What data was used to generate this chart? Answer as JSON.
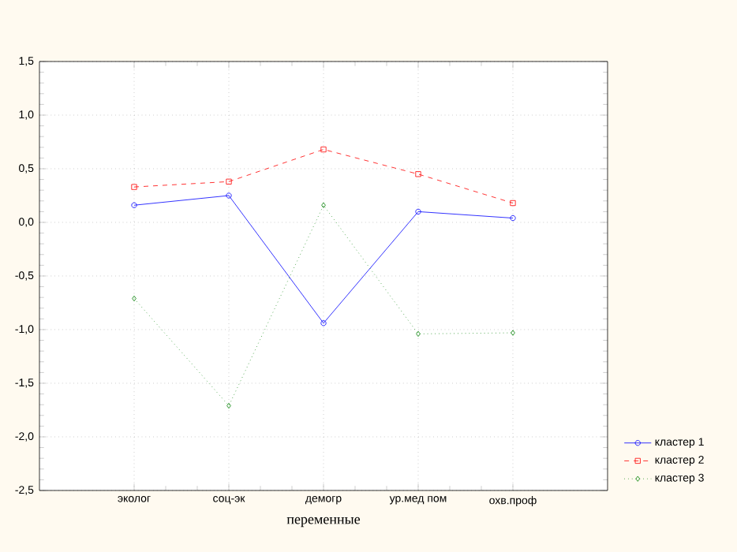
{
  "chart_data": {
    "type": "line",
    "xlabel": "переменные",
    "categories": [
      "эколог",
      "соц-эк",
      "демогр",
      "ур.мед пом",
      "охв.проф"
    ],
    "series": [
      {
        "name": "кластер 1",
        "color": "#0000ff",
        "marker": "circle",
        "line_style": "solid",
        "values": [
          0.16,
          0.25,
          -0.94,
          0.1,
          0.04
        ]
      },
      {
        "name": "кластер 2",
        "color": "#ff0000",
        "marker": "square",
        "line_style": "dashed",
        "values": [
          0.33,
          0.38,
          0.68,
          0.45,
          0.18
        ]
      },
      {
        "name": "кластер 3",
        "color": "#008000",
        "marker": "diamond",
        "line_style": "dotted",
        "values": [
          -0.71,
          -1.71,
          0.16,
          -1.04,
          -1.03
        ]
      }
    ],
    "ylim": [
      -2.5,
      1.5
    ],
    "yticks": [
      {
        "value": -2.5,
        "label": "-2,5"
      },
      {
        "value": -2.0,
        "label": "-2,0"
      },
      {
        "value": -1.5,
        "label": "-1,5"
      },
      {
        "value": -1.0,
        "label": "-1,0"
      },
      {
        "value": -0.5,
        "label": "-0,5"
      },
      {
        "value": 0.0,
        "label": "0,0"
      },
      {
        "value": 0.5,
        "label": "0,5"
      },
      {
        "value": 1.0,
        "label": "1,0"
      },
      {
        "value": 1.5,
        "label": "1,5"
      }
    ],
    "grid": true,
    "legend": "bottom right"
  }
}
